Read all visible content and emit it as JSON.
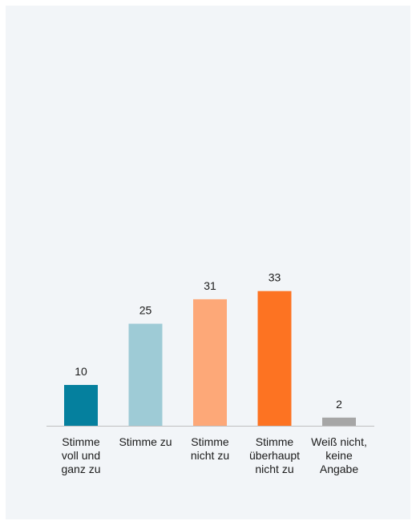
{
  "chart_data": {
    "type": "bar",
    "categories": [
      [
        "Stimme",
        "voll und",
        "ganz zu"
      ],
      [
        "Stimme zu"
      ],
      [
        "Stimme",
        "nicht zu"
      ],
      [
        "Stimme",
        "überhaupt",
        "nicht zu"
      ],
      [
        "Weiß nicht,",
        "keine",
        "Angabe"
      ]
    ],
    "values": [
      10,
      25,
      31,
      33,
      2
    ],
    "colors": [
      "#05809e",
      "#9ecbd6",
      "#fda878",
      "#fd7322",
      "#a6a6a6"
    ],
    "title": "",
    "xlabel": "",
    "ylabel": "",
    "ylim": [
      0,
      35
    ],
    "grid": false,
    "legend": false,
    "data_labels": true
  }
}
